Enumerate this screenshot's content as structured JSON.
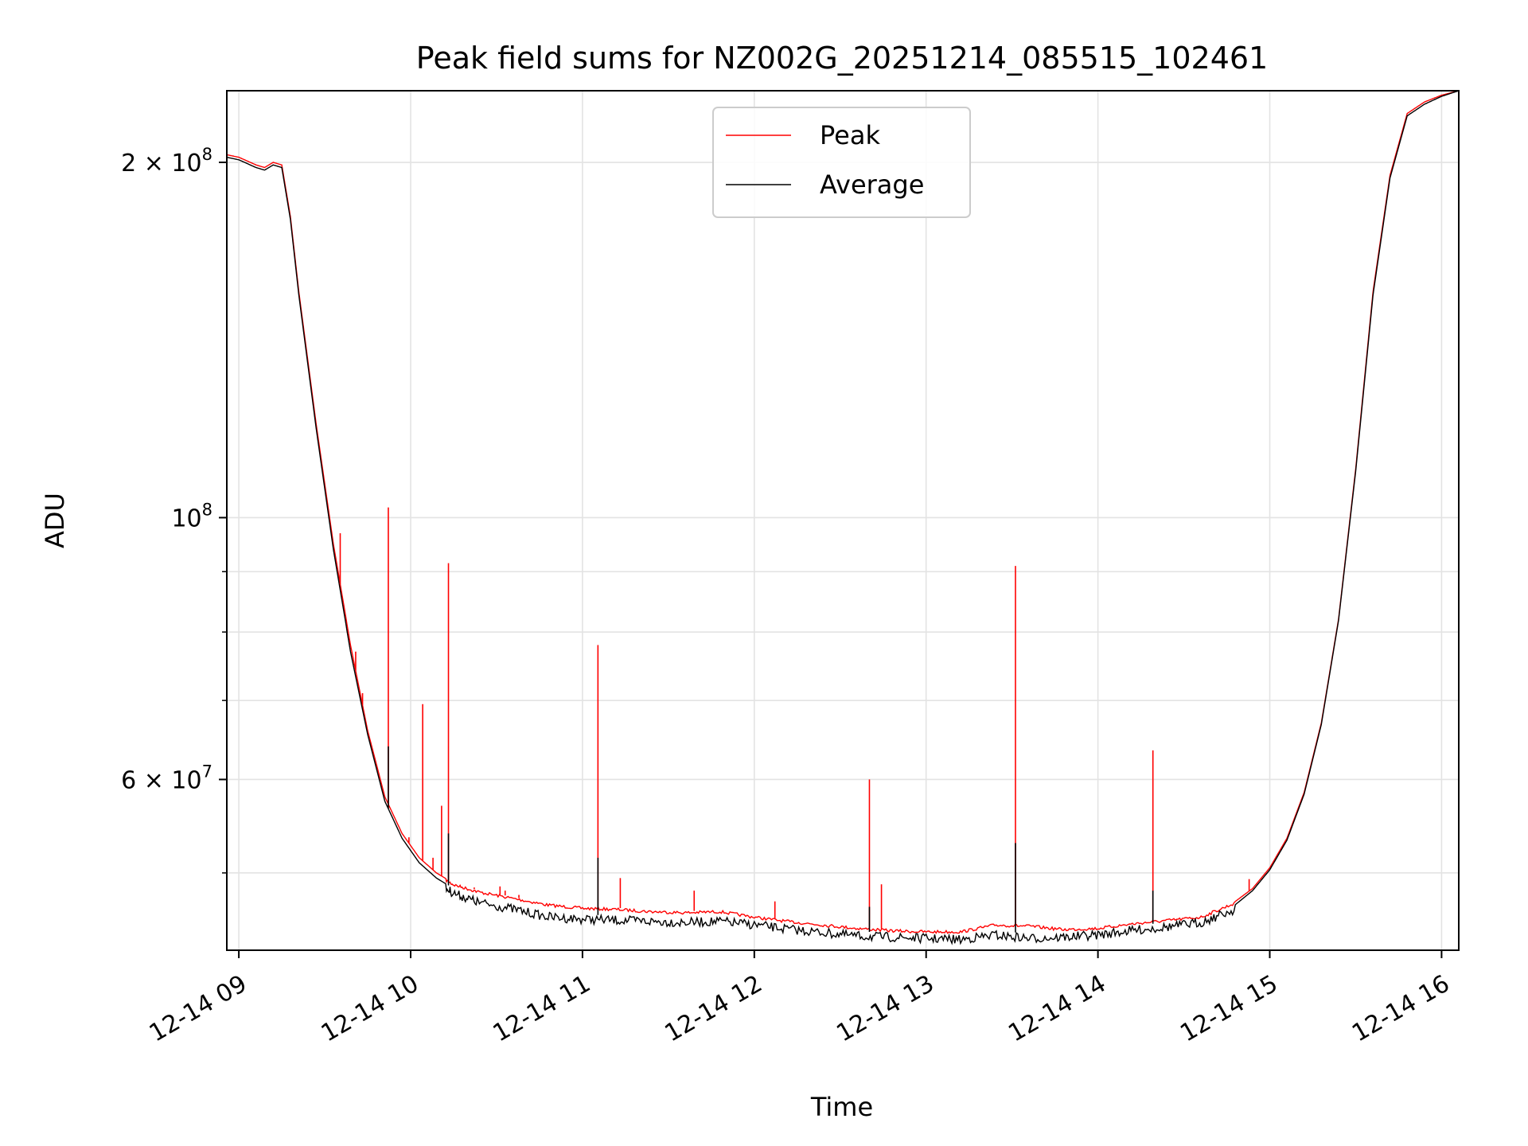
{
  "chart_data": {
    "type": "line",
    "title": "Peak field sums for NZ002G_20251214_085515_102461",
    "xlabel": "Time",
    "ylabel": "ADU",
    "yscale": "log",
    "xlim": [
      8.93,
      16.1
    ],
    "ylim": [
      43000000,
      230000000
    ],
    "grid": true,
    "legend_position": "top-center",
    "x_ticks": [
      {
        "value": 9,
        "label": "12-14 09"
      },
      {
        "value": 10,
        "label": "12-14 10"
      },
      {
        "value": 11,
        "label": "12-14 11"
      },
      {
        "value": 12,
        "label": "12-14 12"
      },
      {
        "value": 13,
        "label": "12-14 13"
      },
      {
        "value": 14,
        "label": "12-14 14"
      },
      {
        "value": 15,
        "label": "12-14 15"
      },
      {
        "value": 16,
        "label": "12-14 16"
      }
    ],
    "y_ticks": [
      {
        "value": 200000000,
        "base": "2 × 10",
        "exp": "8"
      },
      {
        "value": 100000000,
        "base": "10",
        "exp": "8"
      },
      {
        "value": 60000000,
        "base": "6 × 10",
        "exp": "7"
      }
    ],
    "y_minor_ticks": [
      50000000,
      70000000,
      80000000,
      90000000
    ],
    "series": [
      {
        "name": "Peak",
        "color": "#ff0000",
        "x": [
          8.93,
          9.0,
          9.1,
          9.15,
          9.2,
          9.25,
          9.3,
          9.35,
          9.45,
          9.55,
          9.65,
          9.75,
          9.85,
          9.95,
          10.05,
          10.15,
          10.25,
          10.4,
          10.6,
          10.8,
          11.0,
          11.2,
          11.4,
          11.6,
          11.8,
          12.0,
          12.2,
          12.4,
          12.6,
          12.8,
          13.0,
          13.2,
          13.4,
          13.6,
          13.8,
          14.0,
          14.2,
          14.4,
          14.6,
          14.8,
          14.9,
          15.0,
          15.1,
          15.2,
          15.3,
          15.4,
          15.5,
          15.6,
          15.7,
          15.8,
          15.9,
          16.0,
          16.1
        ],
        "y": [
          203000000,
          202000000,
          199000000,
          198000000,
          200000000,
          199000000,
          180000000,
          155000000,
          120000000,
          95000000,
          78000000,
          66000000,
          58000000,
          54000000,
          51500000,
          50000000,
          49000000,
          48300000,
          47700000,
          47100000,
          46800000,
          46700000,
          46500000,
          46400000,
          46500000,
          46000000,
          45600000,
          45300000,
          45000000,
          44800000,
          44700000,
          44700000,
          45300000,
          45200000,
          44900000,
          45000000,
          45400000,
          45700000,
          46000000,
          47300000,
          48500000,
          50500000,
          53500000,
          58500000,
          67000000,
          82000000,
          110000000,
          155000000,
          195000000,
          220000000,
          225000000,
          228000000,
          230000000
        ]
      },
      {
        "name": "Average",
        "color": "#000000",
        "x": [
          8.93,
          9.0,
          9.1,
          9.15,
          9.2,
          9.25,
          9.3,
          9.35,
          9.45,
          9.55,
          9.65,
          9.75,
          9.85,
          9.95,
          10.05,
          10.15,
          10.25,
          10.4,
          10.6,
          10.8,
          11.0,
          11.2,
          11.4,
          11.6,
          11.8,
          12.0,
          12.2,
          12.4,
          12.6,
          12.8,
          13.0,
          13.2,
          13.4,
          13.6,
          13.8,
          14.0,
          14.2,
          14.4,
          14.6,
          14.8,
          14.9,
          15.0,
          15.1,
          15.2,
          15.3,
          15.4,
          15.5,
          15.6,
          15.7,
          15.8,
          15.9,
          16.0,
          16.1
        ],
        "y": [
          202000000,
          201000000,
          198000000,
          197000000,
          199000000,
          198000000,
          179000000,
          154000000,
          119000000,
          94000000,
          77000000,
          65500000,
          57500000,
          53500000,
          51000000,
          49500000,
          48500000,
          47600000,
          47000000,
          46300000,
          46100000,
          46000000,
          45900000,
          45800000,
          45900000,
          45600000,
          45200000,
          44900000,
          44600000,
          44500000,
          44400000,
          44300000,
          44700000,
          44400000,
          44500000,
          44700000,
          45100000,
          45400000,
          45800000,
          47000000,
          48300000,
          50300000,
          53300000,
          58300000,
          66800000,
          81800000,
          109500000,
          154000000,
          194000000,
          219000000,
          224000000,
          227500000,
          230000000
        ]
      }
    ],
    "peak_spikes": [
      {
        "x": 9.59,
        "y": 97000000
      },
      {
        "x": 9.68,
        "y": 77000000
      },
      {
        "x": 9.72,
        "y": 71000000
      },
      {
        "x": 9.87,
        "y": 102000000
      },
      {
        "x": 9.97,
        "y": 53500000
      },
      {
        "x": 9.99,
        "y": 53600000
      },
      {
        "x": 10.07,
        "y": 69500000
      },
      {
        "x": 10.13,
        "y": 51500000
      },
      {
        "x": 10.18,
        "y": 57000000
      },
      {
        "x": 10.22,
        "y": 91500000
      },
      {
        "x": 10.37,
        "y": 48600000
      },
      {
        "x": 10.52,
        "y": 48700000
      },
      {
        "x": 10.55,
        "y": 48300000
      },
      {
        "x": 10.63,
        "y": 47900000
      },
      {
        "x": 11.09,
        "y": 78000000
      },
      {
        "x": 11.22,
        "y": 49500000
      },
      {
        "x": 11.65,
        "y": 48300000
      },
      {
        "x": 12.12,
        "y": 47300000
      },
      {
        "x": 12.67,
        "y": 60000000
      },
      {
        "x": 12.74,
        "y": 48900000
      },
      {
        "x": 13.52,
        "y": 91000000
      },
      {
        "x": 14.32,
        "y": 63500000
      },
      {
        "x": 14.88,
        "y": 49400000
      }
    ],
    "average_spikes": [
      {
        "x": 9.87,
        "y": 64000000
      },
      {
        "x": 10.22,
        "y": 54000000
      },
      {
        "x": 11.09,
        "y": 51500000
      },
      {
        "x": 12.67,
        "y": 46800000
      },
      {
        "x": 13.52,
        "y": 53000000
      },
      {
        "x": 14.32,
        "y": 48300000
      }
    ]
  }
}
